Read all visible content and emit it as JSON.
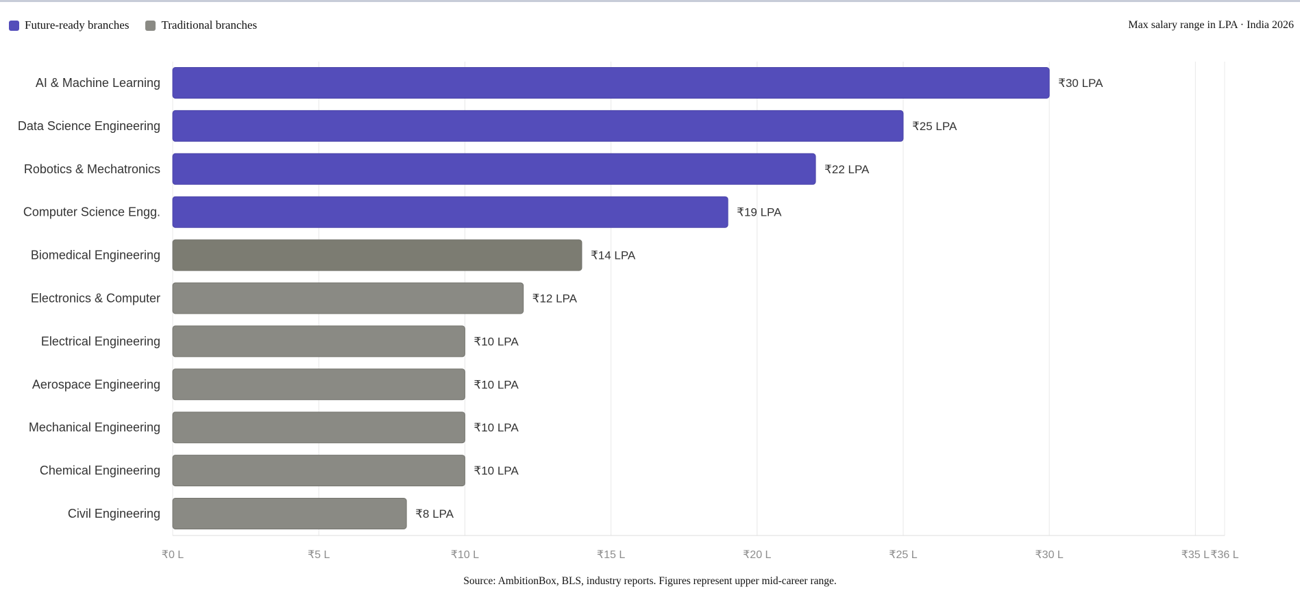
{
  "legend": {
    "future_label": "Future-ready branches",
    "traditional_label": "Traditional branches"
  },
  "subtitle": "Max salary range in LPA · India 2026",
  "source": "Source: AmbitionBox, BLS, industry reports. Figures represent upper mid-career range.",
  "colors": {
    "future": "#544dba",
    "traditional": "#8a8a84",
    "traditional_highlight": "#7c7c72",
    "grid": "#e8e8e8",
    "tick_text": "#8c8c8c",
    "category_text": "#333333",
    "value_text": "#333333"
  },
  "chart_data": {
    "type": "bar",
    "orientation": "horizontal",
    "categories": [
      "AI & Machine Learning",
      "Data Science Engineering",
      "Robotics & Mechatronics",
      "Computer Science Engg.",
      "Biomedical Engineering",
      "Electronics & Computer",
      "Electrical Engineering",
      "Aerospace Engineering",
      "Mechanical Engineering",
      "Chemical Engineering",
      "Civil Engineering"
    ],
    "values": [
      30,
      25,
      22,
      19,
      14,
      12,
      10,
      10,
      10,
      10,
      8
    ],
    "value_labels": [
      "₹30 LPA",
      "₹25 LPA",
      "₹22 LPA",
      "₹19 LPA",
      "₹14 LPA",
      "₹12 LPA",
      "₹10 LPA",
      "₹10 LPA",
      "₹10 LPA",
      "₹10 LPA",
      "₹8 LPA"
    ],
    "groups": [
      "future",
      "future",
      "future",
      "future",
      "traditional",
      "traditional",
      "traditional",
      "traditional",
      "traditional",
      "traditional",
      "traditional"
    ],
    "xlim": [
      0,
      36
    ],
    "x_ticks": [
      0,
      5,
      10,
      15,
      20,
      25,
      30,
      35,
      36
    ],
    "x_tick_labels": [
      "₹0 L",
      "₹5 L",
      "₹10 L",
      "₹15 L",
      "₹20 L",
      "₹25 L",
      "₹30 L",
      "₹35 L",
      "₹36 L"
    ],
    "grid": true,
    "legend_position": "top-left"
  }
}
